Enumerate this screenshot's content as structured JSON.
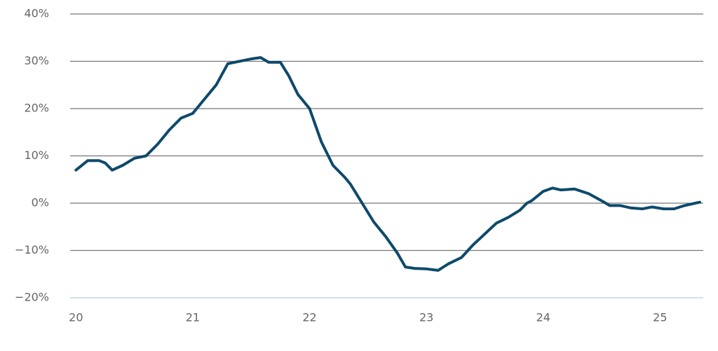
{
  "chart_data": {
    "type": "line",
    "x": [
      20.0,
      20.1,
      20.2,
      20.25,
      20.31,
      20.4,
      20.5,
      20.6,
      20.7,
      20.8,
      20.9,
      21.0,
      21.1,
      21.2,
      21.3,
      21.4,
      21.5,
      21.58,
      21.65,
      21.75,
      21.82,
      21.9,
      22.0,
      22.1,
      22.2,
      22.3,
      22.35,
      22.45,
      22.55,
      22.65,
      22.75,
      22.82,
      22.9,
      23.0,
      23.1,
      23.19,
      23.3,
      23.4,
      23.5,
      23.6,
      23.7,
      23.8,
      23.86,
      23.9,
      24.0,
      24.08,
      24.15,
      24.27,
      24.39,
      24.5,
      24.57,
      24.66,
      24.75,
      24.85,
      24.93,
      25.03,
      25.12,
      25.21,
      25.34
    ],
    "series": [
      {
        "color": "#0d4a6b",
        "values": [
          7,
          9,
          9,
          8.5,
          7,
          8,
          9.5,
          10,
          12.5,
          15.5,
          18,
          19,
          22,
          25,
          29.5,
          30,
          30.5,
          30.8,
          29.8,
          29.8,
          27,
          23,
          20,
          13,
          8,
          5.5,
          4,
          0,
          -4,
          -7,
          -10.5,
          -13.5,
          -13.8,
          -13.9,
          -14.2,
          -12.8,
          -11.5,
          -8.8,
          -6.5,
          -4.2,
          -3,
          -1.5,
          0,
          0.5,
          2.5,
          3.2,
          2.8,
          3,
          2,
          0.5,
          -0.5,
          -0.5,
          -1,
          -1.2,
          -0.8,
          -1.2,
          -1.2,
          -0.5,
          0.2
        ]
      }
    ],
    "xlim": [
      19.95,
      25.37
    ],
    "xticks": [
      20,
      21,
      22,
      23,
      24,
      25
    ],
    "ylim": [
      -20,
      40
    ],
    "yticks": [
      {
        "value": -20,
        "label": "−20%"
      },
      {
        "value": -10,
        "label": "−10%"
      },
      {
        "value": 0,
        "label": "0%"
      },
      {
        "value": 10,
        "label": "10%"
      },
      {
        "value": 20,
        "label": "20%"
      },
      {
        "value": 30,
        "label": "30%"
      },
      {
        "value": 40,
        "label": "40%"
      }
    ],
    "grid": true
  }
}
